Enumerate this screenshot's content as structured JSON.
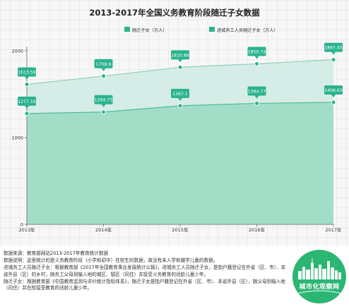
{
  "chart_data": {
    "type": "area",
    "title": "2013-2017年全国义务教育阶段随迁子女数据",
    "categories": [
      "2013年",
      "2014年",
      "2015年",
      "2016年",
      "2017年"
    ],
    "series": [
      {
        "name": "随迁子女（万人）",
        "values": [
          1613.59,
          1708.9,
          1810.86,
          1850.74,
          1897.45
        ],
        "value_labels": [
          "1613.59",
          "1708.9",
          "1810.86",
          "1850.74",
          "1897.45"
        ],
        "color": "#d3ece5",
        "line_color": "#8fd0bf"
      },
      {
        "name": "进城务工人员随迁子女（万人）",
        "values": [
          1277.16,
          1294.73,
          1367.1,
          1394.77,
          1406.63
        ],
        "value_labels": [
          "1277.16",
          "1294.73",
          "1367.1",
          "1394.77",
          "1406.63"
        ],
        "color": "#9fdcc5",
        "line_color": "#4fbc96"
      }
    ],
    "ylim": [
      0,
      2000
    ],
    "yticks": [
      "0",
      "1000",
      "2000"
    ],
    "grid": true,
    "legend_position": "top-center",
    "marker_color": "#2bb38e"
  },
  "notes": {
    "source": "数据来源：教育部网站2013-2017年教育统计数据",
    "explanation": "数据说明：这里统计的是义务教育阶段（小学和初中）在校生的数据，故没有未入学和辍学儿童的数据。",
    "definition_migrant_worker_children": "进城务工人员随迁子女：根据教育部《2017年全国教育事业发展统计公报》，进城务工人员随迁子女，是指户籍登记在外省（区、市）、本省外县（区）的乡村，随务工父母到输入地的城区、镇区（同住）并接受义务教育的适龄儿童少年。",
    "definition_accompanying_children": "随迁子女：根据教育部《中国教育监测与评价统计指标体系》，随迁子女是指户籍登记在外省（区、市）、本省外县（区），随父母到输入地（同住）并在校接受教育的适龄儿童少年。"
  },
  "logo": {
    "text": "城市化观察网",
    "color": "#2bb673"
  }
}
